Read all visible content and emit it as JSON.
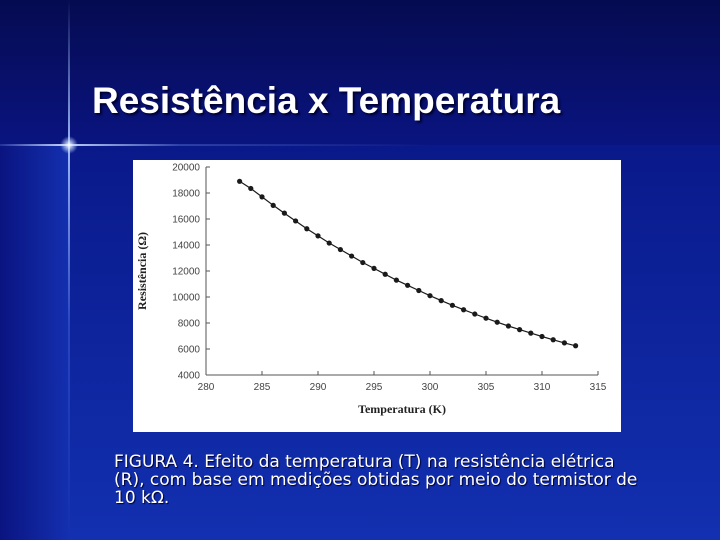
{
  "slide": {
    "title": "Resistência x Temperatura",
    "caption_lines": [
      "FIGURA 4. Efeito da temperatura (T) na resistência elétrica",
      "(R), com base em medições obtidas por meio do termistor de",
      "10 kΩ."
    ]
  },
  "colors": {
    "background": "#0a1a8c",
    "title_text": "#ffffff",
    "chart_background": "#ffffff",
    "series": "#1a1a1a"
  },
  "chart_data": {
    "type": "scatter",
    "title": "",
    "xlabel": "Temperatura (K)",
    "ylabel": "Resistência (Ω)",
    "xlim": [
      280,
      315
    ],
    "ylim": [
      4000,
      20000
    ],
    "xticks": [
      280,
      285,
      290,
      295,
      300,
      305,
      310,
      315
    ],
    "yticks": [
      4000,
      6000,
      8000,
      10000,
      12000,
      14000,
      16000,
      18000,
      20000
    ],
    "grid": false,
    "legend": "none",
    "connected_line": true,
    "series": [
      {
        "x": [
          283,
          284,
          285,
          286,
          287,
          288,
          289,
          290,
          291,
          292,
          293,
          294,
          295,
          296,
          297,
          298,
          299,
          300,
          301,
          302,
          303,
          304,
          305,
          306,
          307,
          308,
          309,
          310,
          311,
          312,
          313
        ],
        "y": [
          18900,
          18350,
          17700,
          17050,
          16450,
          15850,
          15250,
          14700,
          14150,
          13650,
          13150,
          12650,
          12200,
          11750,
          11300,
          10900,
          10500,
          10100,
          9720,
          9360,
          9020,
          8690,
          8370,
          8060,
          7770,
          7490,
          7220,
          6960,
          6710,
          6470,
          6250
        ]
      }
    ]
  }
}
